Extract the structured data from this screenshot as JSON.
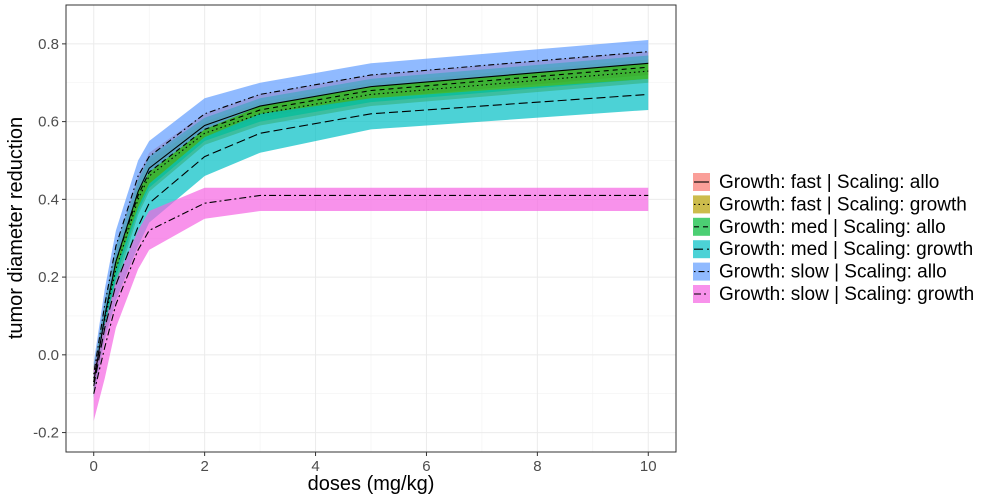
{
  "chart_data": {
    "type": "area",
    "xlabel": "doses (mg/kg)",
    "ylabel": "tumor diameter reduction",
    "xlim": [
      -0.5,
      10.5
    ],
    "ylim": [
      -0.25,
      0.9
    ],
    "x_ticks": [
      0,
      2,
      4,
      6,
      8,
      10
    ],
    "y_ticks": [
      -0.2,
      0.0,
      0.2,
      0.4,
      0.6,
      0.8
    ],
    "x_tick_labels": [
      "0",
      "2",
      "4",
      "6",
      "8",
      "10"
    ],
    "y_tick_labels": [
      "-0.2",
      "0.0",
      "0.2",
      "0.4",
      "0.6",
      "0.8"
    ],
    "grid": true,
    "legend_position": "right",
    "x": [
      0,
      0.2,
      0.4,
      0.8,
      1,
      2,
      3,
      5,
      10
    ],
    "series": [
      {
        "name": "Growth: fast | Scaling: allo",
        "color": "#F8766D",
        "linetype": "solid",
        "values": [
          -0.07,
          0.1,
          0.24,
          0.42,
          0.48,
          0.59,
          0.64,
          0.69,
          0.75
        ],
        "lower": [
          -0.1,
          0.06,
          0.2,
          0.38,
          0.44,
          0.56,
          0.61,
          0.66,
          0.72
        ],
        "upper": [
          -0.03,
          0.14,
          0.28,
          0.46,
          0.52,
          0.62,
          0.67,
          0.72,
          0.78
        ]
      },
      {
        "name": "Growth: fast | Scaling: growth",
        "color": "#B79F00",
        "linetype": "dotted",
        "values": [
          -0.06,
          0.09,
          0.22,
          0.4,
          0.46,
          0.57,
          0.62,
          0.67,
          0.73
        ],
        "lower": [
          -0.09,
          0.05,
          0.18,
          0.36,
          0.42,
          0.54,
          0.59,
          0.64,
          0.7
        ],
        "upper": [
          -0.03,
          0.13,
          0.26,
          0.44,
          0.5,
          0.6,
          0.65,
          0.7,
          0.76
        ]
      },
      {
        "name": "Growth: med | Scaling: allo",
        "color": "#00BA38",
        "linetype": "dashed",
        "values": [
          -0.07,
          0.1,
          0.24,
          0.41,
          0.47,
          0.58,
          0.63,
          0.68,
          0.74
        ],
        "lower": [
          -0.1,
          0.06,
          0.2,
          0.37,
          0.43,
          0.55,
          0.6,
          0.65,
          0.71
        ],
        "upper": [
          -0.04,
          0.14,
          0.28,
          0.45,
          0.51,
          0.61,
          0.66,
          0.71,
          0.77
        ]
      },
      {
        "name": "Growth: med | Scaling: growth",
        "color": "#00BFC4",
        "linetype": "longdash",
        "values": [
          -0.08,
          0.07,
          0.18,
          0.33,
          0.39,
          0.51,
          0.57,
          0.62,
          0.67
        ],
        "lower": [
          -0.11,
          0.04,
          0.14,
          0.28,
          0.34,
          0.46,
          0.52,
          0.58,
          0.63
        ],
        "upper": [
          -0.05,
          0.1,
          0.22,
          0.38,
          0.44,
          0.56,
          0.62,
          0.66,
          0.71
        ]
      },
      {
        "name": "Growth: slow | Scaling: allo",
        "color": "#619CFF",
        "linetype": "dotdash",
        "values": [
          -0.05,
          0.13,
          0.28,
          0.46,
          0.51,
          0.62,
          0.67,
          0.72,
          0.78
        ],
        "lower": [
          -0.08,
          0.09,
          0.24,
          0.42,
          0.47,
          0.58,
          0.64,
          0.69,
          0.75
        ],
        "upper": [
          -0.02,
          0.17,
          0.32,
          0.5,
          0.55,
          0.66,
          0.7,
          0.75,
          0.81
        ]
      },
      {
        "name": "Growth: slow | Scaling: growth",
        "color": "#F564E3",
        "linetype": "twodash",
        "values": [
          -0.1,
          0.02,
          0.13,
          0.27,
          0.32,
          0.39,
          0.41,
          0.41,
          0.41
        ],
        "lower": [
          -0.17,
          -0.06,
          0.07,
          0.22,
          0.27,
          0.35,
          0.37,
          0.37,
          0.37
        ],
        "upper": [
          -0.04,
          0.08,
          0.19,
          0.32,
          0.37,
          0.43,
          0.43,
          0.43,
          0.43
        ]
      }
    ]
  }
}
